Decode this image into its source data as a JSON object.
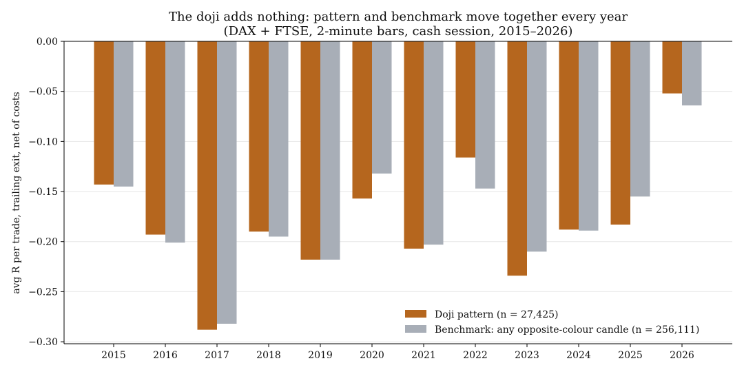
{
  "chart_data": {
    "type": "bar",
    "title": "The doji adds nothing: pattern and benchmark move together every year",
    "subtitle": "(DAX + FTSE, 2-minute bars, cash session, 2015–2026)",
    "xlabel": "",
    "ylabel": "avg R per trade, trailing exit, net of costs",
    "categories": [
      "2015",
      "2016",
      "2017",
      "2018",
      "2019",
      "2020",
      "2021",
      "2022",
      "2023",
      "2024",
      "2025",
      "2026"
    ],
    "series": [
      {
        "name": "Doji pattern (n = 27,425)",
        "color": "#b5661e",
        "values": [
          -0.143,
          -0.193,
          -0.288,
          -0.19,
          -0.218,
          -0.157,
          -0.207,
          -0.116,
          -0.234,
          -0.188,
          -0.183,
          -0.052
        ]
      },
      {
        "name": "Benchmark: any opposite-colour candle (n = 256,111)",
        "color": "#a8aeb7",
        "values": [
          -0.145,
          -0.201,
          -0.282,
          -0.195,
          -0.218,
          -0.132,
          -0.203,
          -0.147,
          -0.21,
          -0.189,
          -0.155,
          -0.064
        ]
      }
    ],
    "ylim": [
      -0.302,
      0.0
    ],
    "yticks": [
      "0.00",
      "−0.05",
      "−0.10",
      "−0.15",
      "−0.20",
      "−0.25",
      "−0.30"
    ],
    "ytick_values": [
      0.0,
      -0.05,
      -0.1,
      -0.15,
      -0.2,
      -0.25,
      -0.3
    ],
    "grid": "horizontal, light",
    "legend_position": "lower-right"
  }
}
